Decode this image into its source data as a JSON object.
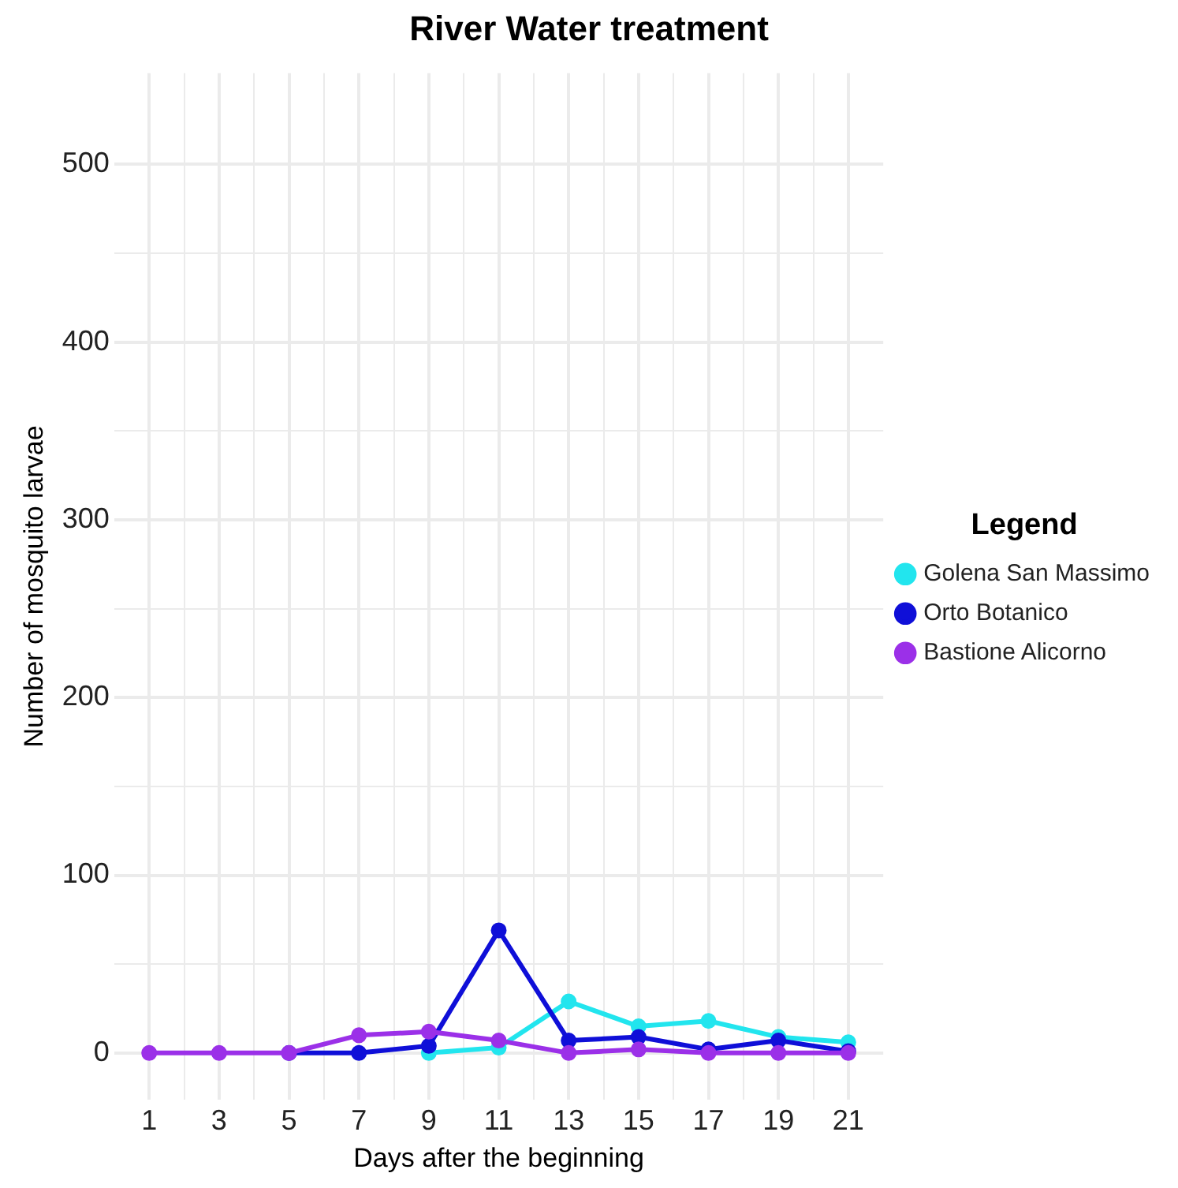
{
  "chart_data": {
    "type": "line",
    "title": "River Water treatment",
    "xlabel": "Days after the beginning",
    "ylabel": "Number of mosquito larvae",
    "legend_title": "Legend",
    "legend": "right",
    "grid": true,
    "marker": "circle",
    "line_style": "solid",
    "x": [
      1,
      3,
      5,
      7,
      9,
      11,
      13,
      15,
      17,
      19,
      21
    ],
    "xlim": [
      0,
      22
    ],
    "xticks": [
      1,
      {
        "value": 2,
        "label": null
      },
      3,
      {
        "value": 4,
        "label": null
      },
      5,
      {
        "value": 6,
        "label": null
      },
      7,
      {
        "value": 8,
        "label": null
      },
      9,
      {
        "value": 10,
        "label": null
      },
      11,
      {
        "value": 12,
        "label": null
      },
      13,
      {
        "value": 14,
        "label": null
      },
      15,
      {
        "value": 16,
        "label": null
      },
      17,
      {
        "value": 18,
        "label": null
      },
      19,
      {
        "value": 20,
        "label": null
      },
      21
    ],
    "ylim": [
      -26.25,
      551.25
    ],
    "yticks": [
      0,
      {
        "value": 50,
        "label": null
      },
      100,
      {
        "value": 150,
        "label": null
      },
      200,
      {
        "value": 250,
        "label": null
      },
      300,
      {
        "value": 350,
        "label": null
      },
      400,
      {
        "value": 450,
        "label": null
      },
      500
    ],
    "series": [
      {
        "name": "Golena San Massimo",
        "color": "#22e5ee",
        "values": [
          null,
          null,
          null,
          null,
          0,
          3,
          29,
          15,
          18,
          9,
          6
        ]
      },
      {
        "name": "Orto Botanico",
        "color": "#0f0fd8",
        "values": [
          null,
          null,
          0,
          0,
          4,
          69,
          7,
          9,
          2,
          7,
          1
        ]
      },
      {
        "name": "Bastione Alicorno",
        "color": "#9b30e8",
        "values": [
          0,
          0,
          0,
          10,
          12,
          7,
          0,
          2,
          0,
          0,
          0
        ]
      }
    ]
  }
}
